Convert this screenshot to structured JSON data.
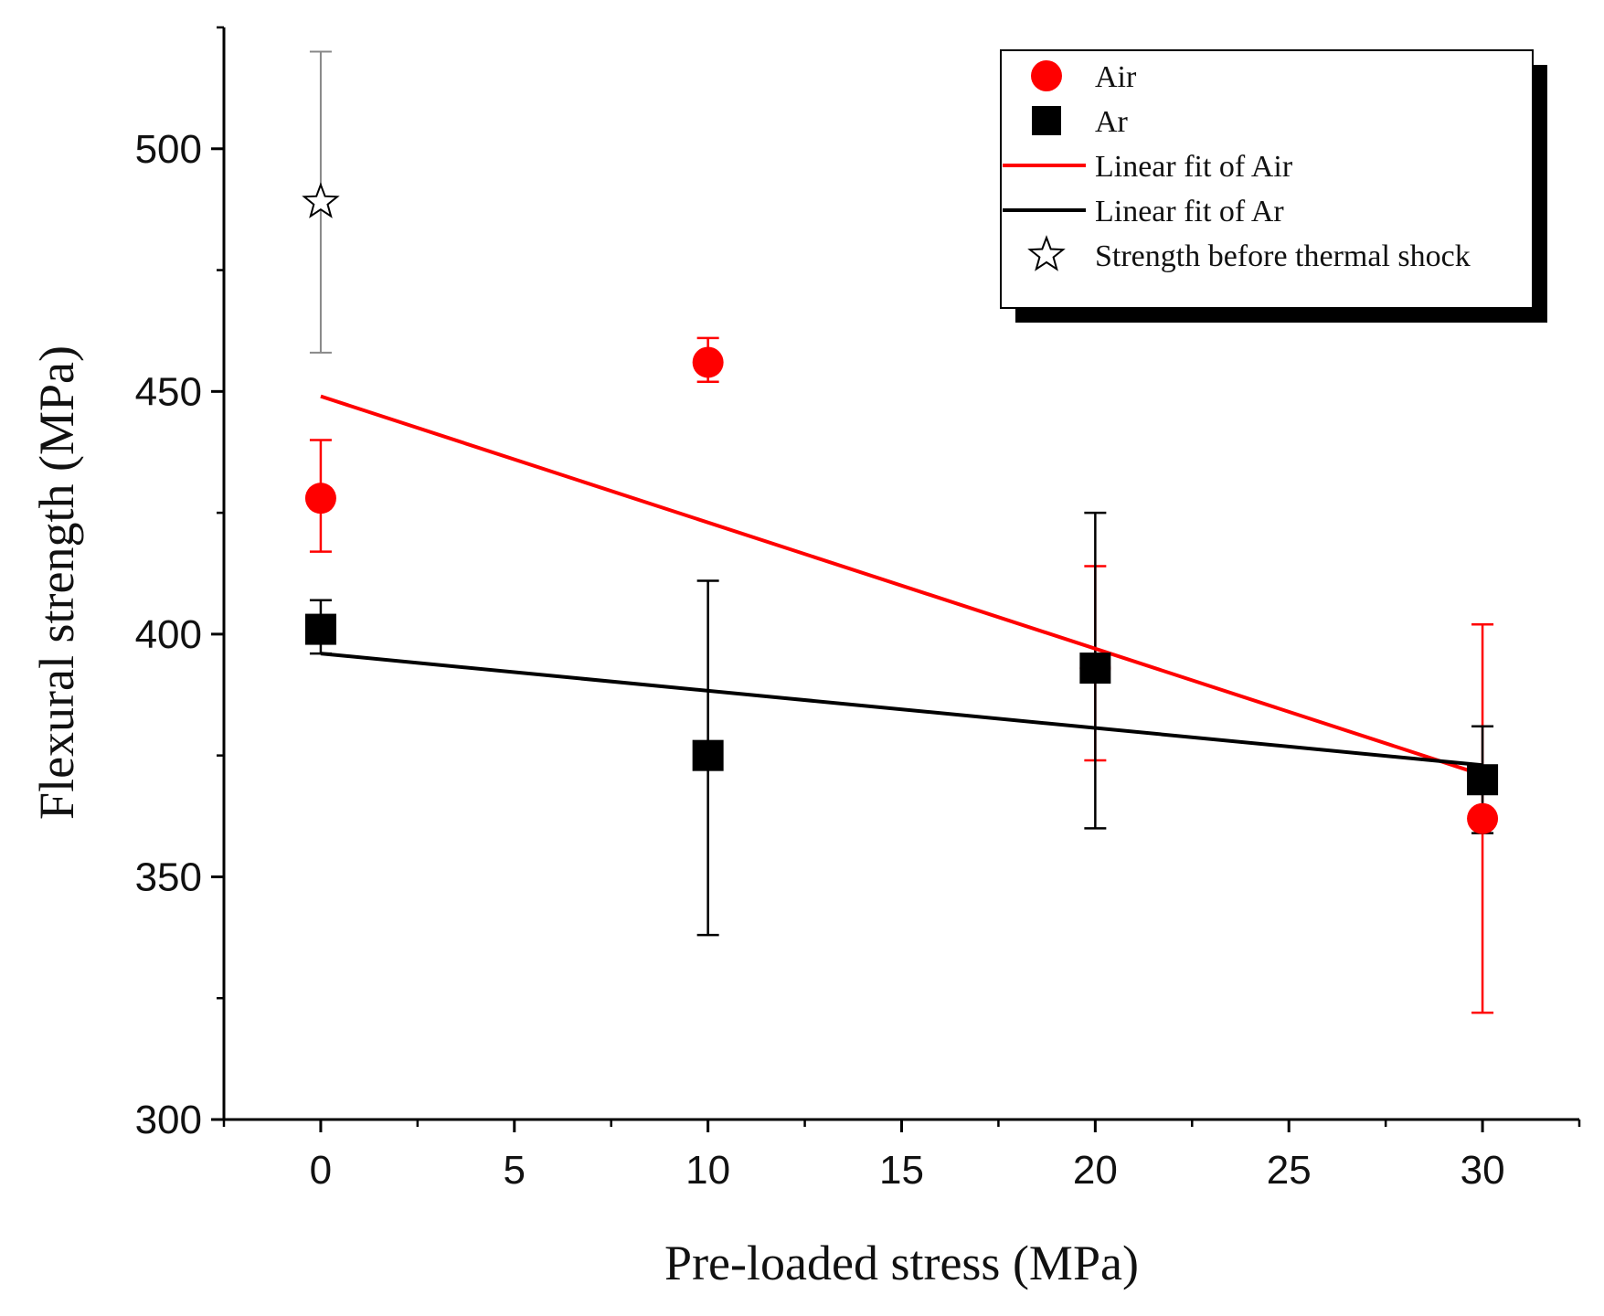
{
  "chart_data": {
    "type": "scatter",
    "title": "",
    "xlabel": "Pre-loaded stress (MPa)",
    "ylabel": "Flexural strength (MPa)",
    "xlim": [
      -2.5,
      32.5
    ],
    "ylim": [
      300,
      525
    ],
    "x_ticks": [
      0,
      5,
      10,
      15,
      20,
      25,
      30
    ],
    "x_tick_labels": [
      "0",
      "5",
      "10",
      "15",
      "20",
      "25",
      "30"
    ],
    "y_ticks": [
      300,
      350,
      400,
      450,
      500
    ],
    "y_tick_labels": [
      "300",
      "350",
      "400",
      "450",
      "500"
    ],
    "grid": false,
    "legend_position": "top-right",
    "series": [
      {
        "name": "Air",
        "kind": "points",
        "marker": "circle",
        "color": "#ff0000",
        "points": [
          {
            "x": 0,
            "y": 428,
            "err_low": 417,
            "err_high": 440
          },
          {
            "x": 10,
            "y": 456,
            "err_low": 452,
            "err_high": 461
          },
          {
            "x": 20,
            "y": 393,
            "err_low": 374,
            "err_high": 414
          },
          {
            "x": 30,
            "y": 362,
            "err_low": 322,
            "err_high": 402
          }
        ]
      },
      {
        "name": "Ar",
        "kind": "points",
        "marker": "square",
        "color": "#000000",
        "points": [
          {
            "x": 0,
            "y": 401,
            "err_low": 396,
            "err_high": 407
          },
          {
            "x": 10,
            "y": 375,
            "err_low": 338,
            "err_high": 411
          },
          {
            "x": 20,
            "y": 393,
            "err_low": 360,
            "err_high": 425
          },
          {
            "x": 30,
            "y": 370,
            "err_low": 359,
            "err_high": 381
          }
        ]
      },
      {
        "name": "Linear fit of Air",
        "kind": "line",
        "color": "#ff0000",
        "x": [
          0,
          30
        ],
        "y": [
          449,
          371
        ]
      },
      {
        "name": "Linear fit of Ar",
        "kind": "line",
        "color": "#000000",
        "x": [
          0,
          30
        ],
        "y": [
          396,
          373
        ]
      },
      {
        "name": "Strength before thermal shock",
        "kind": "points",
        "marker": "star",
        "color": "#000000",
        "error_color": "#888888",
        "points": [
          {
            "x": 0,
            "y": 489,
            "err_low": 458,
            "err_high": 520
          }
        ]
      }
    ]
  }
}
